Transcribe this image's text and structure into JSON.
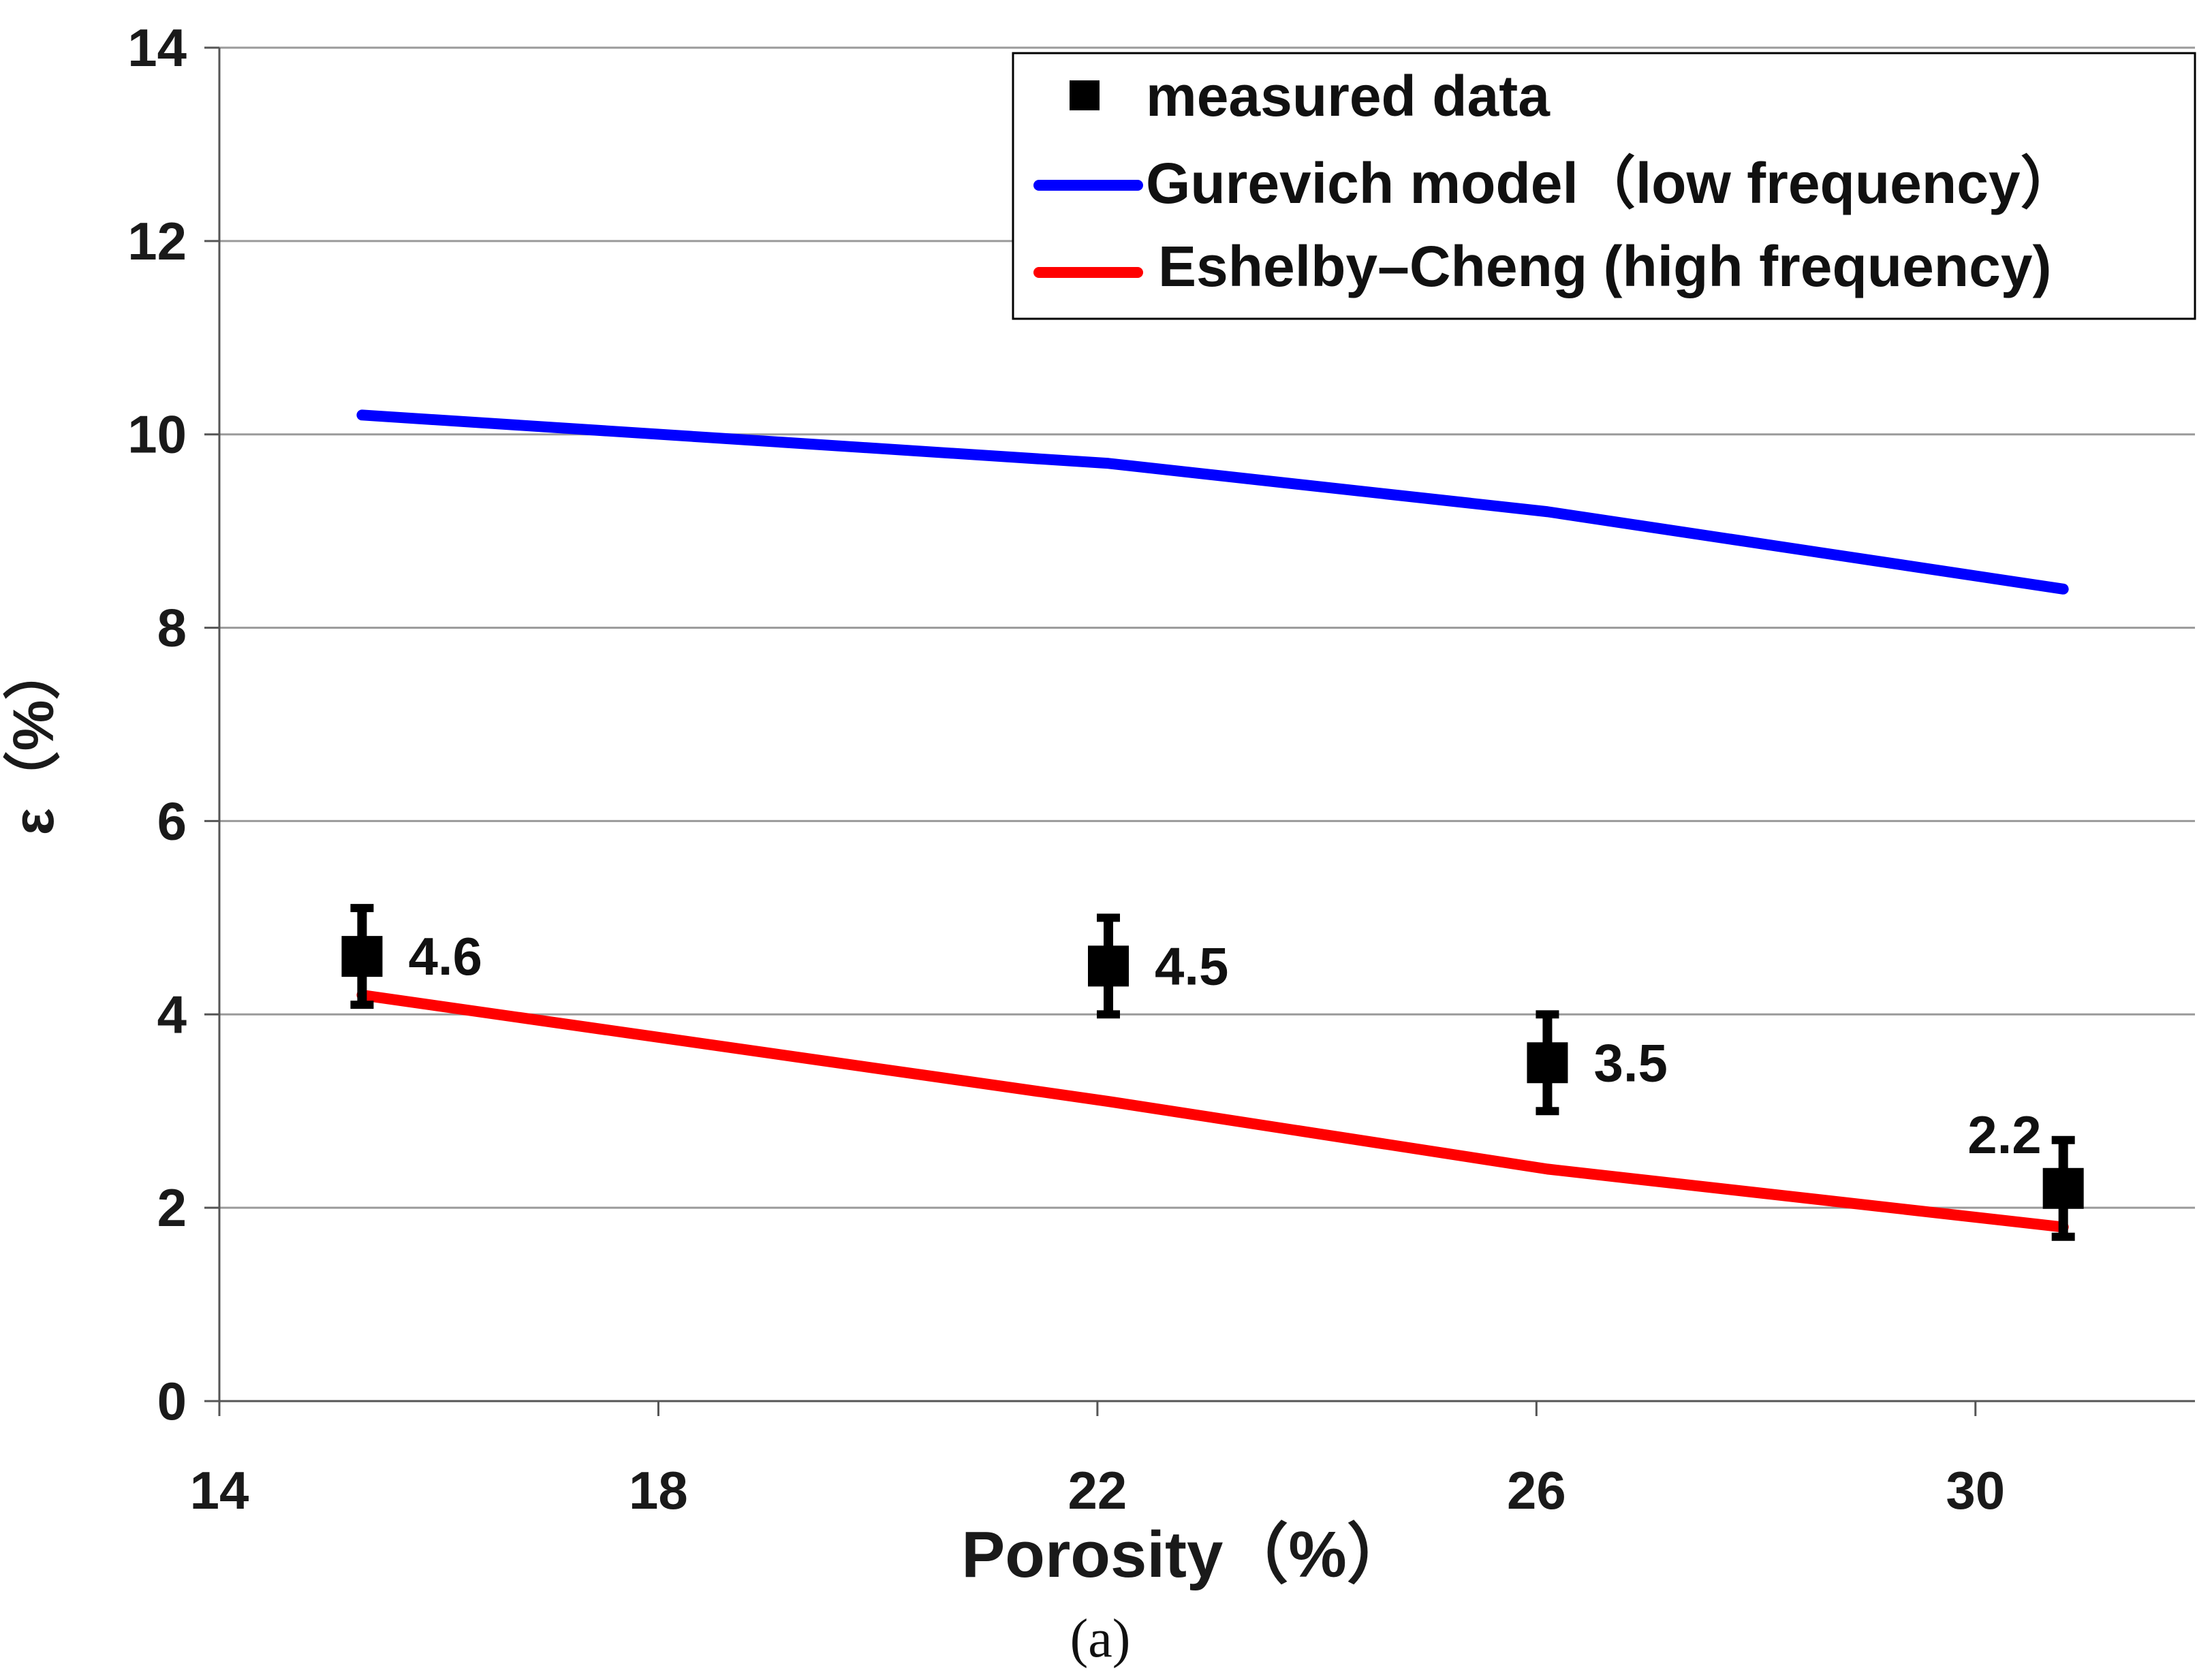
{
  "chart_data": {
    "type": "line",
    "title": "",
    "xlabel": "Porosity（%）",
    "ylabel": "ε（%）",
    "caption": "(a)",
    "xlim": [
      14,
      32
    ],
    "ylim": [
      0,
      14
    ],
    "xticks": [
      14,
      18,
      22,
      26,
      30
    ],
    "yticks": [
      0,
      2,
      4,
      6,
      8,
      10,
      12,
      14
    ],
    "grid": true,
    "legend_position": "top-right",
    "legend": {
      "measured": "measured data",
      "gurevich": "Gurevich model（low frequency）",
      "eshelby": "Eshelby–Cheng  (high frequency)"
    },
    "series": [
      {
        "name": "Gurevich model（low frequency）",
        "kind": "line",
        "color": "#0000ff",
        "x": [
          15.3,
          22.1,
          26.1,
          30.8
        ],
        "y": [
          10.2,
          9.7,
          9.2,
          8.4
        ]
      },
      {
        "name": "Eshelby–Cheng  (high frequency)",
        "kind": "line",
        "color": "#ff0000",
        "x": [
          15.3,
          22.1,
          26.1,
          30.8
        ],
        "y": [
          4.2,
          3.1,
          2.4,
          1.8
        ]
      },
      {
        "name": "measured data",
        "kind": "scatter",
        "color": "#000000",
        "x": [
          15.3,
          22.1,
          26.1,
          30.8
        ],
        "y": [
          4.6,
          4.5,
          3.5,
          2.2
        ],
        "err": [
          0.5,
          0.5,
          0.5,
          0.5
        ],
        "labels": [
          "4.6",
          "4.5",
          "3.5",
          "2.2"
        ]
      }
    ]
  }
}
